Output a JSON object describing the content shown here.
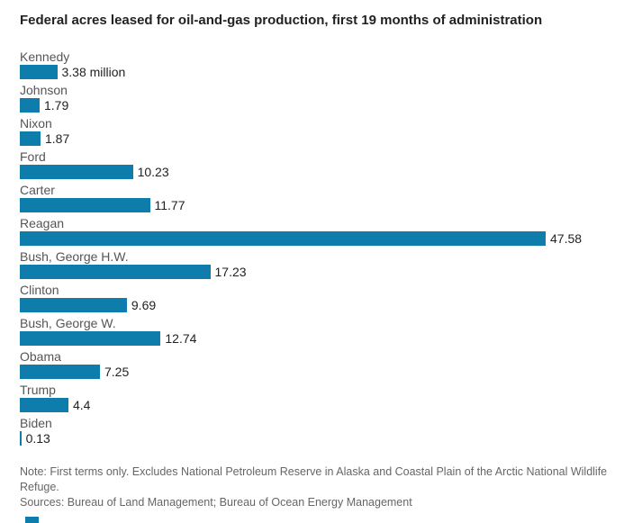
{
  "chart": {
    "title": "Federal acres leased for oil-and-gas production, first 19 months of administration",
    "bar_color": "#0e7dab",
    "note": "Note: First terms only. Excludes National Petroleum Reserve in Alaska and Coastal Plain of the Arctic National Wildlife Refuge.",
    "sources": "Sources: Bureau of Land Management; Bureau of Ocean Energy Management"
  },
  "chart_data": {
    "type": "bar",
    "orientation": "horizontal",
    "title": "Federal acres leased for oil-and-gas production, first 19 months of administration",
    "xlabel": "",
    "ylabel": "",
    "unit": "million acres",
    "xlim": [
      0,
      47.58
    ],
    "grid": false,
    "legend": null,
    "categories": [
      "Kennedy",
      "Johnson",
      "Nixon",
      "Ford",
      "Carter",
      "Reagan",
      "Bush, George H.W.",
      "Clinton",
      "Bush, George W.",
      "Obama",
      "Trump",
      "Biden"
    ],
    "values": [
      3.38,
      1.79,
      1.87,
      10.23,
      11.77,
      47.58,
      17.23,
      9.69,
      12.74,
      7.25,
      4.4,
      0.13
    ],
    "value_labels": [
      "3.38 million",
      "1.79",
      "1.87",
      "10.23",
      "11.77",
      "47.58",
      "17.23",
      "9.69",
      "12.74",
      "7.25",
      "4.4",
      "0.13"
    ]
  }
}
